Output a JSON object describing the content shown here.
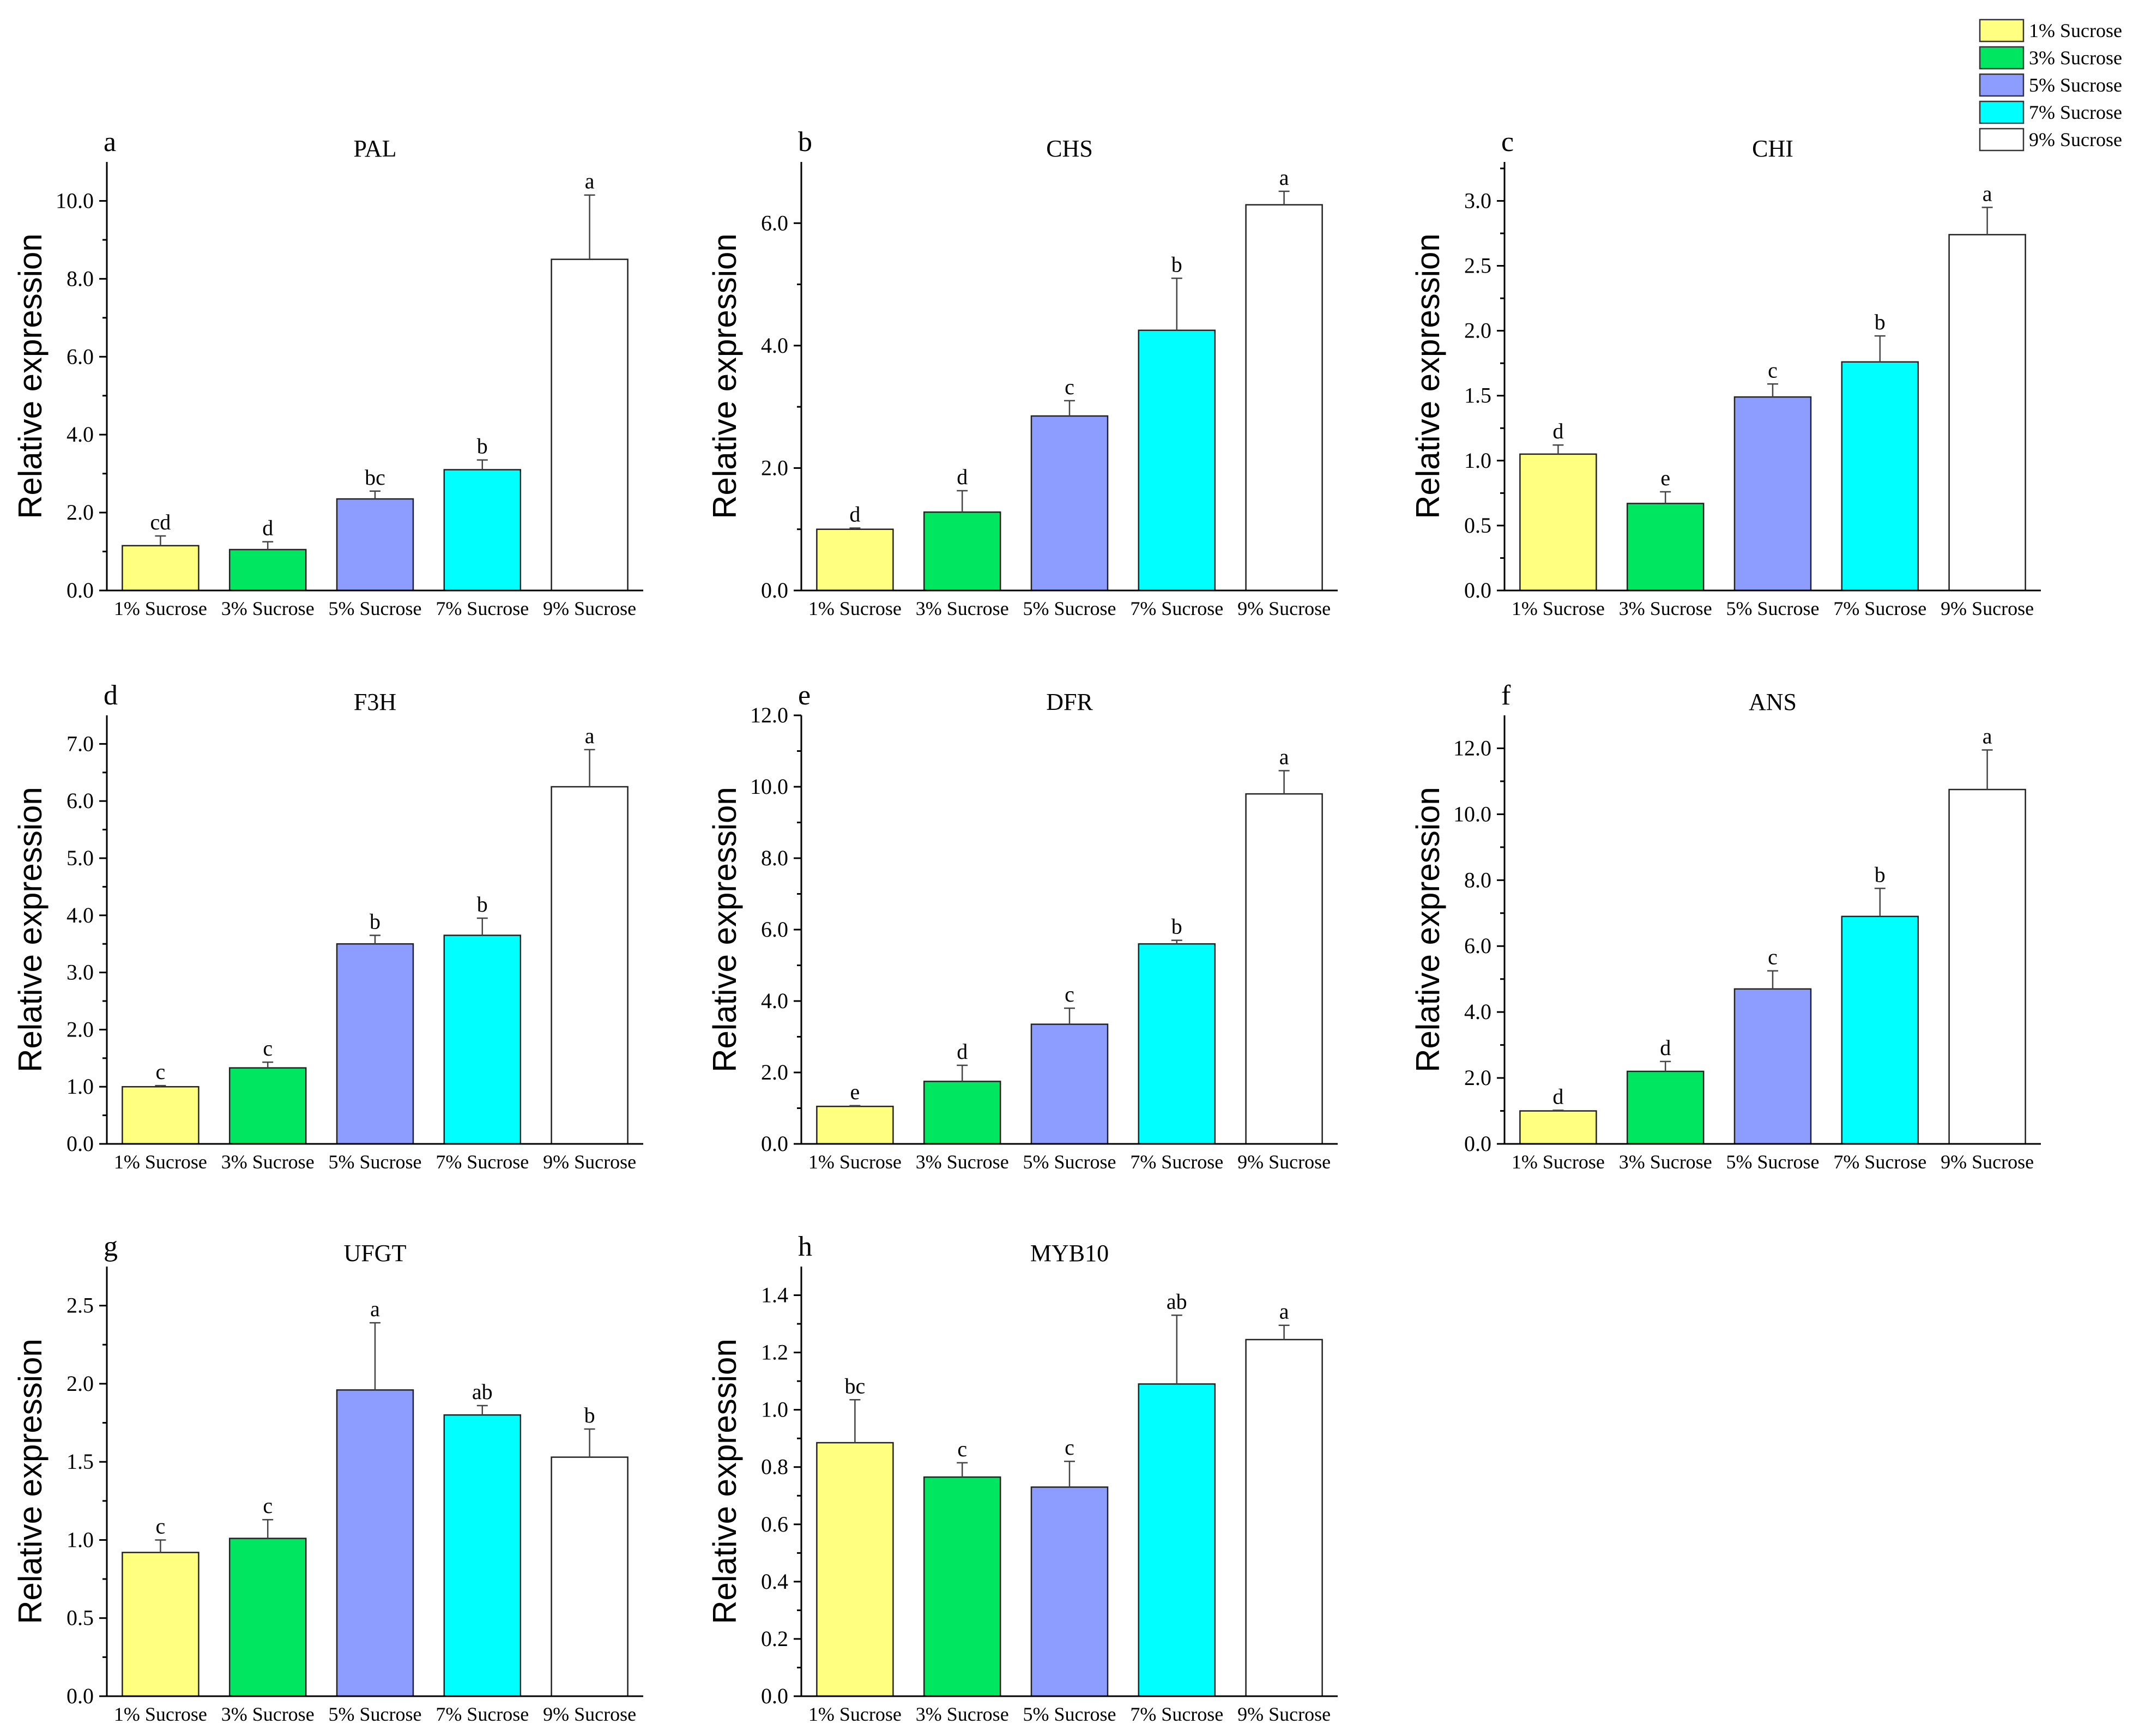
{
  "legend": [
    {
      "label": "1% Sucrose",
      "color": "#ffff80"
    },
    {
      "label": "3% Sucrose",
      "color": "#00e660"
    },
    {
      "label": "5% Sucrose",
      "color": "#8c9cff"
    },
    {
      "label": "7% Sucrose",
      "color": "#00ffff"
    },
    {
      "label": "9% Sucrose",
      "color": "#ffffff"
    }
  ],
  "chart_data": [
    {
      "panel": "a",
      "type": "bar",
      "title": "PAL",
      "ylabel": "Relative expression",
      "categories": [
        "1% Sucrose",
        "3% Sucrose",
        "5% Sucrose",
        "7% Sucrose",
        "9% Sucrose"
      ],
      "values": [
        1.15,
        1.05,
        2.35,
        3.1,
        8.5
      ],
      "errors": [
        0.25,
        0.2,
        0.2,
        0.25,
        1.65
      ],
      "letters": [
        "cd",
        "d",
        "bc",
        "b",
        "a"
      ],
      "ylim": [
        0,
        11
      ],
      "ticks": [
        0,
        2,
        4,
        6,
        8,
        10
      ],
      "decimals": 1
    },
    {
      "panel": "b",
      "type": "bar",
      "title": "CHS",
      "ylabel": "Relative expression",
      "categories": [
        "1% Sucrose",
        "3% Sucrose",
        "5% Sucrose",
        "7% Sucrose",
        "9% Sucrose"
      ],
      "values": [
        1.0,
        1.28,
        2.85,
        4.25,
        6.3
      ],
      "errors": [
        0.02,
        0.35,
        0.25,
        0.85,
        0.22
      ],
      "letters": [
        "d",
        "d",
        "c",
        "b",
        "a"
      ],
      "ylim": [
        0,
        7
      ],
      "ticks": [
        0,
        2,
        4,
        6
      ],
      "decimals": 1
    },
    {
      "panel": "c",
      "type": "bar",
      "title": "CHI",
      "ylabel": "Relative expression",
      "categories": [
        "1% Sucrose",
        "3% Sucrose",
        "5% Sucrose",
        "7% Sucrose",
        "9% Sucrose"
      ],
      "values": [
        1.05,
        0.67,
        1.49,
        1.76,
        2.74
      ],
      "errors": [
        0.07,
        0.09,
        0.1,
        0.2,
        0.21
      ],
      "letters": [
        "d",
        "e",
        "c",
        "b",
        "a"
      ],
      "ylim": [
        0,
        3.3
      ],
      "ticks": [
        0,
        0.5,
        1,
        1.5,
        2,
        2.5,
        3
      ],
      "decimals": 1
    },
    {
      "panel": "d",
      "type": "bar",
      "title": "F3H",
      "ylabel": "Relative expression",
      "categories": [
        "1% Sucrose",
        "3% Sucrose",
        "5% Sucrose",
        "7% Sucrose",
        "9% Sucrose"
      ],
      "values": [
        1.0,
        1.33,
        3.5,
        3.65,
        6.25
      ],
      "errors": [
        0.02,
        0.1,
        0.15,
        0.3,
        0.65
      ],
      "letters": [
        "c",
        "c",
        "b",
        "b",
        "a"
      ],
      "ylim": [
        0,
        7.5
      ],
      "ticks": [
        0,
        1,
        2,
        3,
        4,
        5,
        6,
        7
      ],
      "decimals": 1
    },
    {
      "panel": "e",
      "type": "bar",
      "title": "DFR",
      "ylabel": "Relative expression",
      "categories": [
        "1% Sucrose",
        "3% Sucrose",
        "5% Sucrose",
        "7% Sucrose",
        "9% Sucrose"
      ],
      "values": [
        1.05,
        1.75,
        3.35,
        5.6,
        9.8
      ],
      "errors": [
        0.02,
        0.45,
        0.45,
        0.1,
        0.65
      ],
      "letters": [
        "e",
        "d",
        "c",
        "b",
        "a"
      ],
      "ylim": [
        0,
        12
      ],
      "ticks": [
        0,
        2,
        4,
        6,
        8,
        10,
        12
      ],
      "decimals": 1
    },
    {
      "panel": "f",
      "type": "bar",
      "title": "ANS",
      "ylabel": "Relative expression",
      "categories": [
        "1% Sucrose",
        "3% Sucrose",
        "5% Sucrose",
        "7% Sucrose",
        "9% Sucrose"
      ],
      "values": [
        1.0,
        2.2,
        4.7,
        6.9,
        10.75
      ],
      "errors": [
        0.02,
        0.3,
        0.55,
        0.85,
        1.2
      ],
      "letters": [
        "d",
        "d",
        "c",
        "b",
        "a"
      ],
      "ylim": [
        0,
        13
      ],
      "ticks": [
        0,
        2,
        4,
        6,
        8,
        10,
        12
      ],
      "decimals": 1
    },
    {
      "panel": "g",
      "type": "bar",
      "title": "UFGT",
      "ylabel": "Relative expression",
      "categories": [
        "1% Sucrose",
        "3% Sucrose",
        "5% Sucrose",
        "7% Sucrose",
        "9% Sucrose"
      ],
      "values": [
        0.92,
        1.01,
        1.96,
        1.8,
        1.53
      ],
      "errors": [
        0.08,
        0.12,
        0.43,
        0.06,
        0.18
      ],
      "letters": [
        "c",
        "c",
        "a",
        "ab",
        "b"
      ],
      "ylim": [
        0,
        2.75
      ],
      "ticks": [
        0,
        0.5,
        1,
        1.5,
        2,
        2.5
      ],
      "decimals": 1
    },
    {
      "panel": "h",
      "type": "bar",
      "title": "MYB10",
      "ylabel": "Relative expression",
      "categories": [
        "1% Sucrose",
        "3% Sucrose",
        "5% Sucrose",
        "7% Sucrose",
        "9% Sucrose"
      ],
      "values": [
        0.885,
        0.765,
        0.73,
        1.09,
        1.245
      ],
      "errors": [
        0.15,
        0.05,
        0.09,
        0.24,
        0.05
      ],
      "letters": [
        "bc",
        "c",
        "c",
        "ab",
        "a"
      ],
      "ylim": [
        0,
        1.5
      ],
      "ticks": [
        0,
        0.2,
        0.4,
        0.6,
        0.8,
        1,
        1.2,
        1.4
      ],
      "decimals": 1
    }
  ]
}
